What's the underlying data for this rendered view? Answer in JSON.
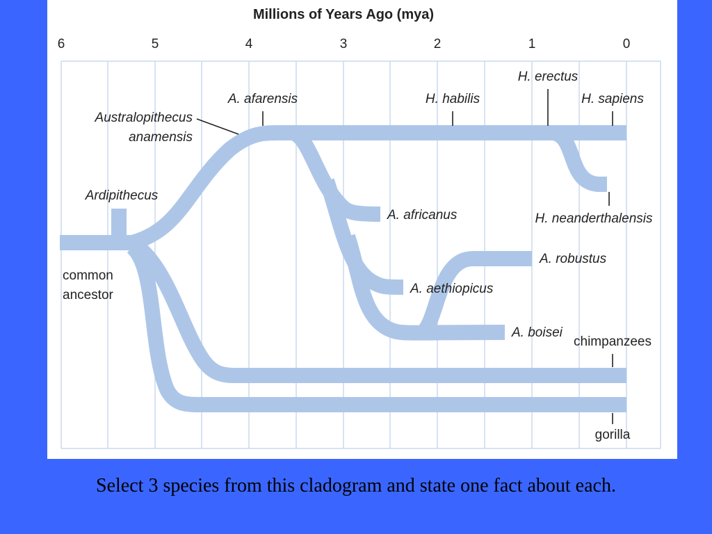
{
  "diagram": {
    "title": "Millions of Years Ago (mya)",
    "axis": {
      "ticks": [
        "6",
        "5",
        "4",
        "3",
        "2",
        "1",
        "0"
      ]
    },
    "labels": {
      "anamensis_line1": "Australopithecus",
      "anamensis_line2": "anamensis",
      "afarensis": "A. afarensis",
      "habilis": "H. habilis",
      "erectus": "H. erectus",
      "sapiens": "H. sapiens",
      "ardipithecus": "Ardipithecus",
      "ancestor_line1": "common",
      "ancestor_line2": "ancestor",
      "africanus": "A. africanus",
      "aethiopicus": "A. aethiopicus",
      "robustus": "A. robustus",
      "boisei": "A. boisei",
      "neanderthalensis": "H. neanderthalensis",
      "chimpanzees": "chimpanzees",
      "gorilla": "gorilla"
    },
    "colors": {
      "branch": "#adc6e8",
      "grid": "#c9daef",
      "background": "#3a66ff"
    }
  },
  "caption": "Select 3 species from this cladogram and state one fact about each."
}
